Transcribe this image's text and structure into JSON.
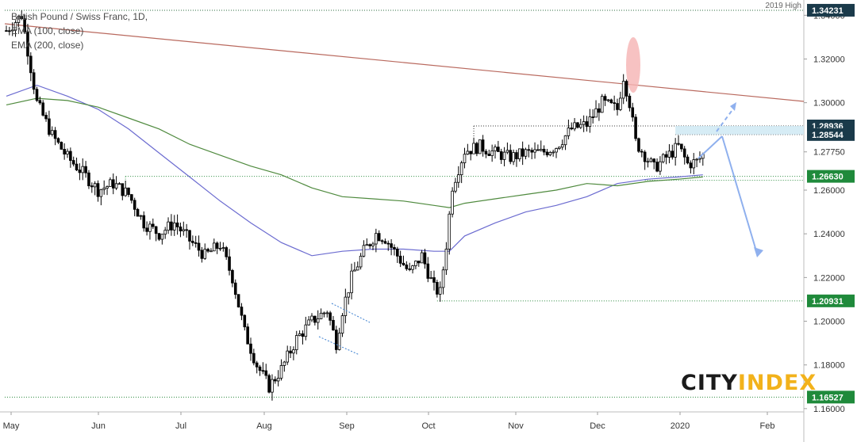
{
  "chart_data": {
    "type": "candlestick",
    "title": "British Pound / Swiss Franc, 1D,",
    "indicators": [
      "EMA (100, close)",
      "EMA (200, close)"
    ],
    "x_labels": [
      "May",
      "Jun",
      "Jul",
      "Aug",
      "Sep",
      "Oct",
      "Nov",
      "Dec",
      "2020",
      "Feb"
    ],
    "y_ticks": [
      "1.16000",
      "1.18000",
      "1.20000",
      "1.22000",
      "1.24000",
      "1.26000",
      "1.27750",
      "1.30000",
      "1.32000",
      "1.34000"
    ],
    "ylim": [
      1.1585,
      1.347
    ],
    "price_levels": [
      {
        "value": 1.34231,
        "label": "1.34231",
        "note": "2019 High"
      },
      {
        "value": 1.28936,
        "label": "1.28936"
      },
      {
        "value": 1.28544,
        "label": "1.28544"
      },
      {
        "value": 1.2663,
        "label": "1.26630"
      },
      {
        "value": 1.20931,
        "label": "1.20931"
      },
      {
        "value": 1.16527,
        "label": "1.16527"
      }
    ],
    "close_path": [
      [
        0,
        1.333
      ],
      [
        5,
        1.34
      ],
      [
        10,
        1.3
      ],
      [
        15,
        1.285
      ],
      [
        20,
        1.275
      ],
      [
        25,
        1.268
      ],
      [
        30,
        1.26
      ],
      [
        35,
        1.263
      ],
      [
        40,
        1.258
      ],
      [
        45,
        1.245
      ],
      [
        50,
        1.24
      ],
      [
        55,
        1.245
      ],
      [
        60,
        1.237
      ],
      [
        65,
        1.23
      ],
      [
        70,
        1.235
      ],
      [
        74,
        1.22
      ],
      [
        78,
        1.195
      ],
      [
        82,
        1.18
      ],
      [
        86,
        1.17
      ],
      [
        90,
        1.178
      ],
      [
        95,
        1.192
      ],
      [
        100,
        1.2
      ],
      [
        105,
        1.205
      ],
      [
        108,
        1.19
      ],
      [
        110,
        1.205
      ],
      [
        113,
        1.22
      ],
      [
        117,
        1.232
      ],
      [
        121,
        1.24
      ],
      [
        124,
        1.238
      ],
      [
        128,
        1.23
      ],
      [
        132,
        1.222
      ],
      [
        136,
        1.23
      ],
      [
        140,
        1.215
      ],
      [
        142,
        1.213
      ],
      [
        144,
        1.235
      ],
      [
        146,
        1.262
      ],
      [
        150,
        1.278
      ],
      [
        155,
        1.28
      ],
      [
        160,
        1.277
      ],
      [
        165,
        1.275
      ],
      [
        170,
        1.277
      ],
      [
        175,
        1.277
      ],
      [
        180,
        1.28
      ],
      [
        185,
        1.288
      ],
      [
        190,
        1.29
      ],
      [
        195,
        1.3
      ],
      [
        200,
        1.297
      ],
      [
        202,
        1.312
      ],
      [
        204,
        1.3
      ],
      [
        206,
        1.282
      ],
      [
        208,
        1.278
      ],
      [
        212,
        1.27
      ],
      [
        216,
        1.275
      ],
      [
        220,
        1.28
      ],
      [
        223,
        1.272
      ],
      [
        226,
        1.273
      ],
      [
        228,
        1.276
      ]
    ],
    "ema100": [
      [
        0,
        1.303
      ],
      [
        10,
        1.308
      ],
      [
        20,
        1.303
      ],
      [
        30,
        1.297
      ],
      [
        40,
        1.288
      ],
      [
        50,
        1.277
      ],
      [
        60,
        1.266
      ],
      [
        70,
        1.255
      ],
      [
        80,
        1.245
      ],
      [
        90,
        1.236
      ],
      [
        100,
        1.23
      ],
      [
        110,
        1.232
      ],
      [
        120,
        1.233
      ],
      [
        130,
        1.233
      ],
      [
        140,
        1.232
      ],
      [
        145,
        1.232
      ],
      [
        150,
        1.239
      ],
      [
        160,
        1.245
      ],
      [
        170,
        1.25
      ],
      [
        180,
        1.253
      ],
      [
        190,
        1.257
      ],
      [
        200,
        1.263
      ],
      [
        210,
        1.265
      ],
      [
        220,
        1.266
      ],
      [
        228,
        1.267
      ]
    ],
    "ema200": [
      [
        0,
        1.299
      ],
      [
        10,
        1.302
      ],
      [
        20,
        1.301
      ],
      [
        30,
        1.298
      ],
      [
        40,
        1.293
      ],
      [
        50,
        1.288
      ],
      [
        60,
        1.281
      ],
      [
        70,
        1.276
      ],
      [
        80,
        1.271
      ],
      [
        90,
        1.267
      ],
      [
        100,
        1.261
      ],
      [
        110,
        1.257
      ],
      [
        120,
        1.256
      ],
      [
        130,
        1.255
      ],
      [
        140,
        1.253
      ],
      [
        145,
        1.252
      ],
      [
        150,
        1.254
      ],
      [
        160,
        1.256
      ],
      [
        170,
        1.258
      ],
      [
        180,
        1.26
      ],
      [
        190,
        1.263
      ],
      [
        200,
        1.262
      ],
      [
        210,
        1.264
      ],
      [
        220,
        1.265
      ],
      [
        228,
        1.266
      ]
    ],
    "annotations": {
      "logo_part1": "CITY",
      "logo_part2": "INDEX"
    }
  }
}
